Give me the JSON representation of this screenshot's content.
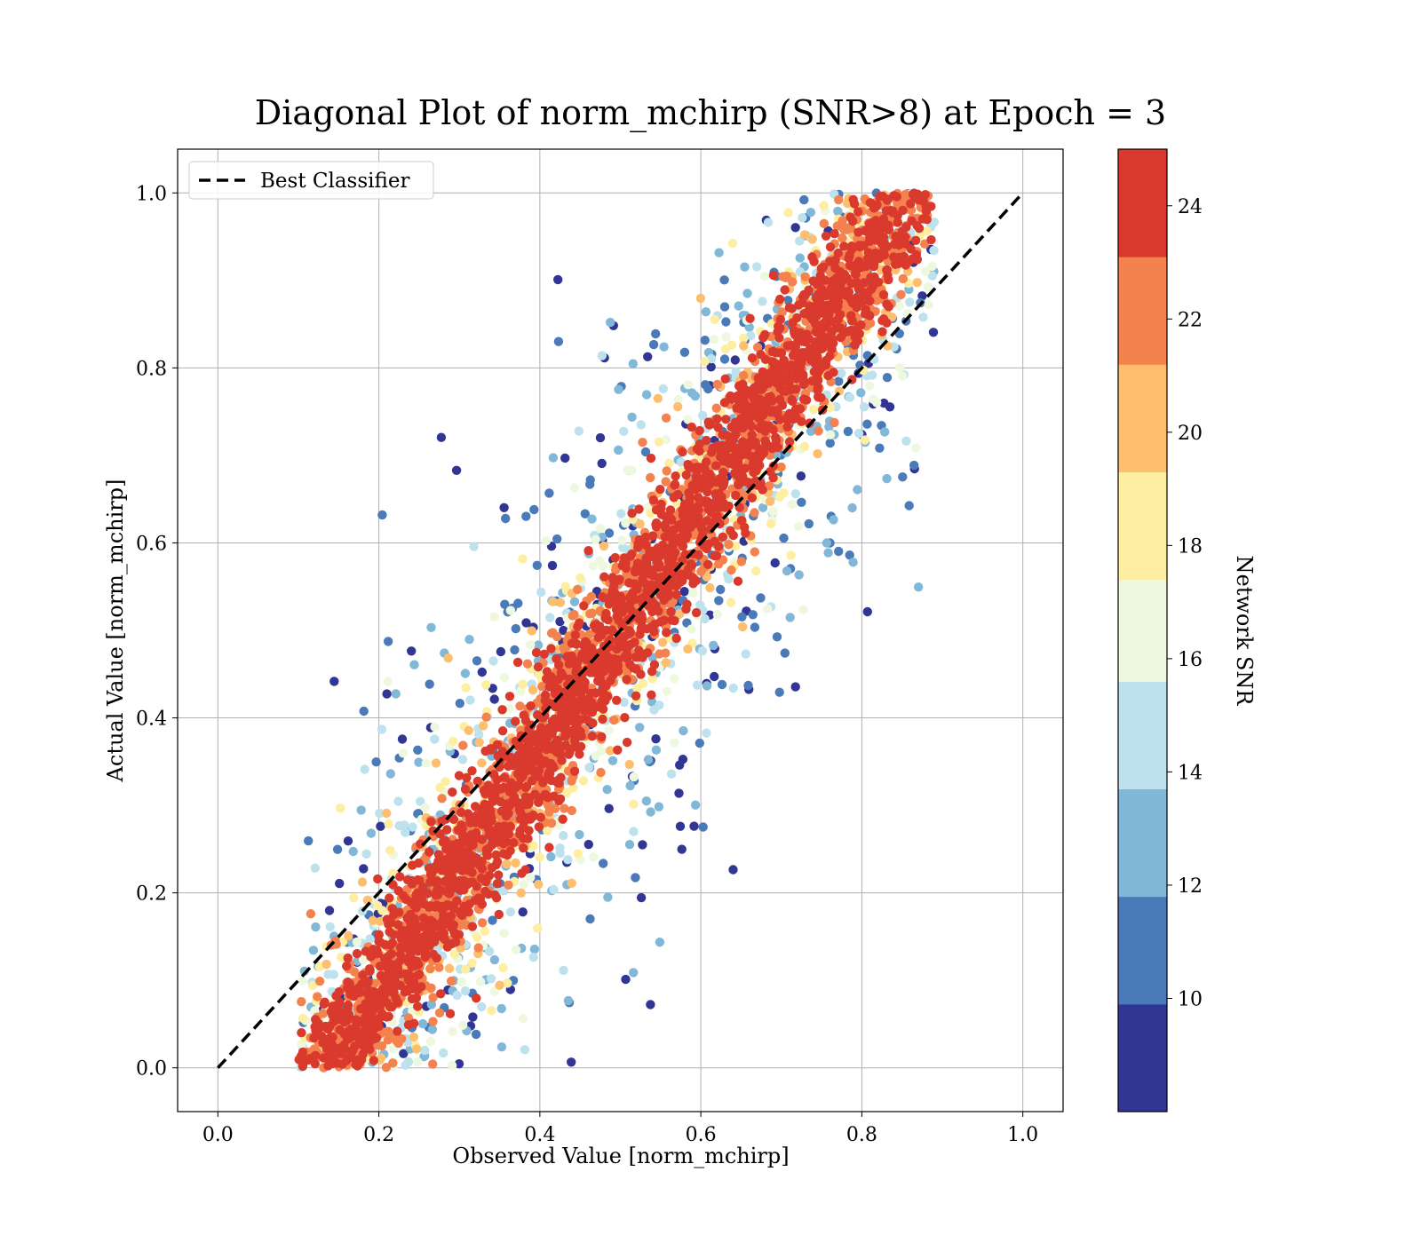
{
  "chart_data": {
    "type": "scatter",
    "title": "Diagonal Plot of norm_mchirp (SNR>8) at Epoch = 3",
    "xlabel": "Observed Value [norm_mchirp]",
    "ylabel": "Actual Value [norm_mchirp]",
    "xlim": [
      -0.05,
      1.05
    ],
    "ylim": [
      -0.05,
      1.05
    ],
    "x_ticks": [
      "0.0",
      "0.2",
      "0.4",
      "0.6",
      "0.8",
      "1.0"
    ],
    "y_ticks": [
      "0.0",
      "0.2",
      "0.4",
      "0.6",
      "0.8",
      "1.0"
    ],
    "grid": true,
    "legend": {
      "position": "upper-left",
      "entries": [
        "Best Classifier"
      ]
    },
    "reference_line": {
      "name": "Best Classifier",
      "x": [
        0.0,
        1.0
      ],
      "y": [
        0.0,
        1.0
      ],
      "style": "dashed",
      "color": "#000000"
    },
    "scatter": {
      "color_variable": "Network SNR",
      "description": "Dense cloud along diagonal; high-SNR points (dark red) tightly along y=x, low-SNR points (blue) spread away from diagonal",
      "x_range": [
        0.1,
        0.89
      ],
      "y_range": [
        0.0,
        1.0
      ],
      "band_half_width_by_snr": [
        {
          "snr": [
            8,
            10
          ],
          "half_width": 0.3
        },
        {
          "snr": [
            10,
            14
          ],
          "half_width": 0.24
        },
        {
          "snr": [
            14,
            18
          ],
          "half_width": 0.18
        },
        {
          "snr": [
            18,
            22
          ],
          "half_width": 0.12
        },
        {
          "snr": [
            22,
            25
          ],
          "half_width": 0.07
        }
      ]
    },
    "colorbar": {
      "label": "Network SNR",
      "range": [
        8,
        25
      ],
      "boundaries": [
        8,
        9.9,
        11.8,
        13.7,
        15.6,
        17.4,
        19.3,
        21.2,
        23.1,
        25
      ],
      "colors": [
        "#313695",
        "#4a7ab8",
        "#81b7d7",
        "#bde2ee",
        "#eef8df",
        "#feeea2",
        "#fdbf6f",
        "#f4824f",
        "#d93a2d",
        "#a50026"
      ],
      "ticks": [
        "10",
        "12",
        "14",
        "16",
        "18",
        "20",
        "22",
        "24"
      ]
    }
  }
}
